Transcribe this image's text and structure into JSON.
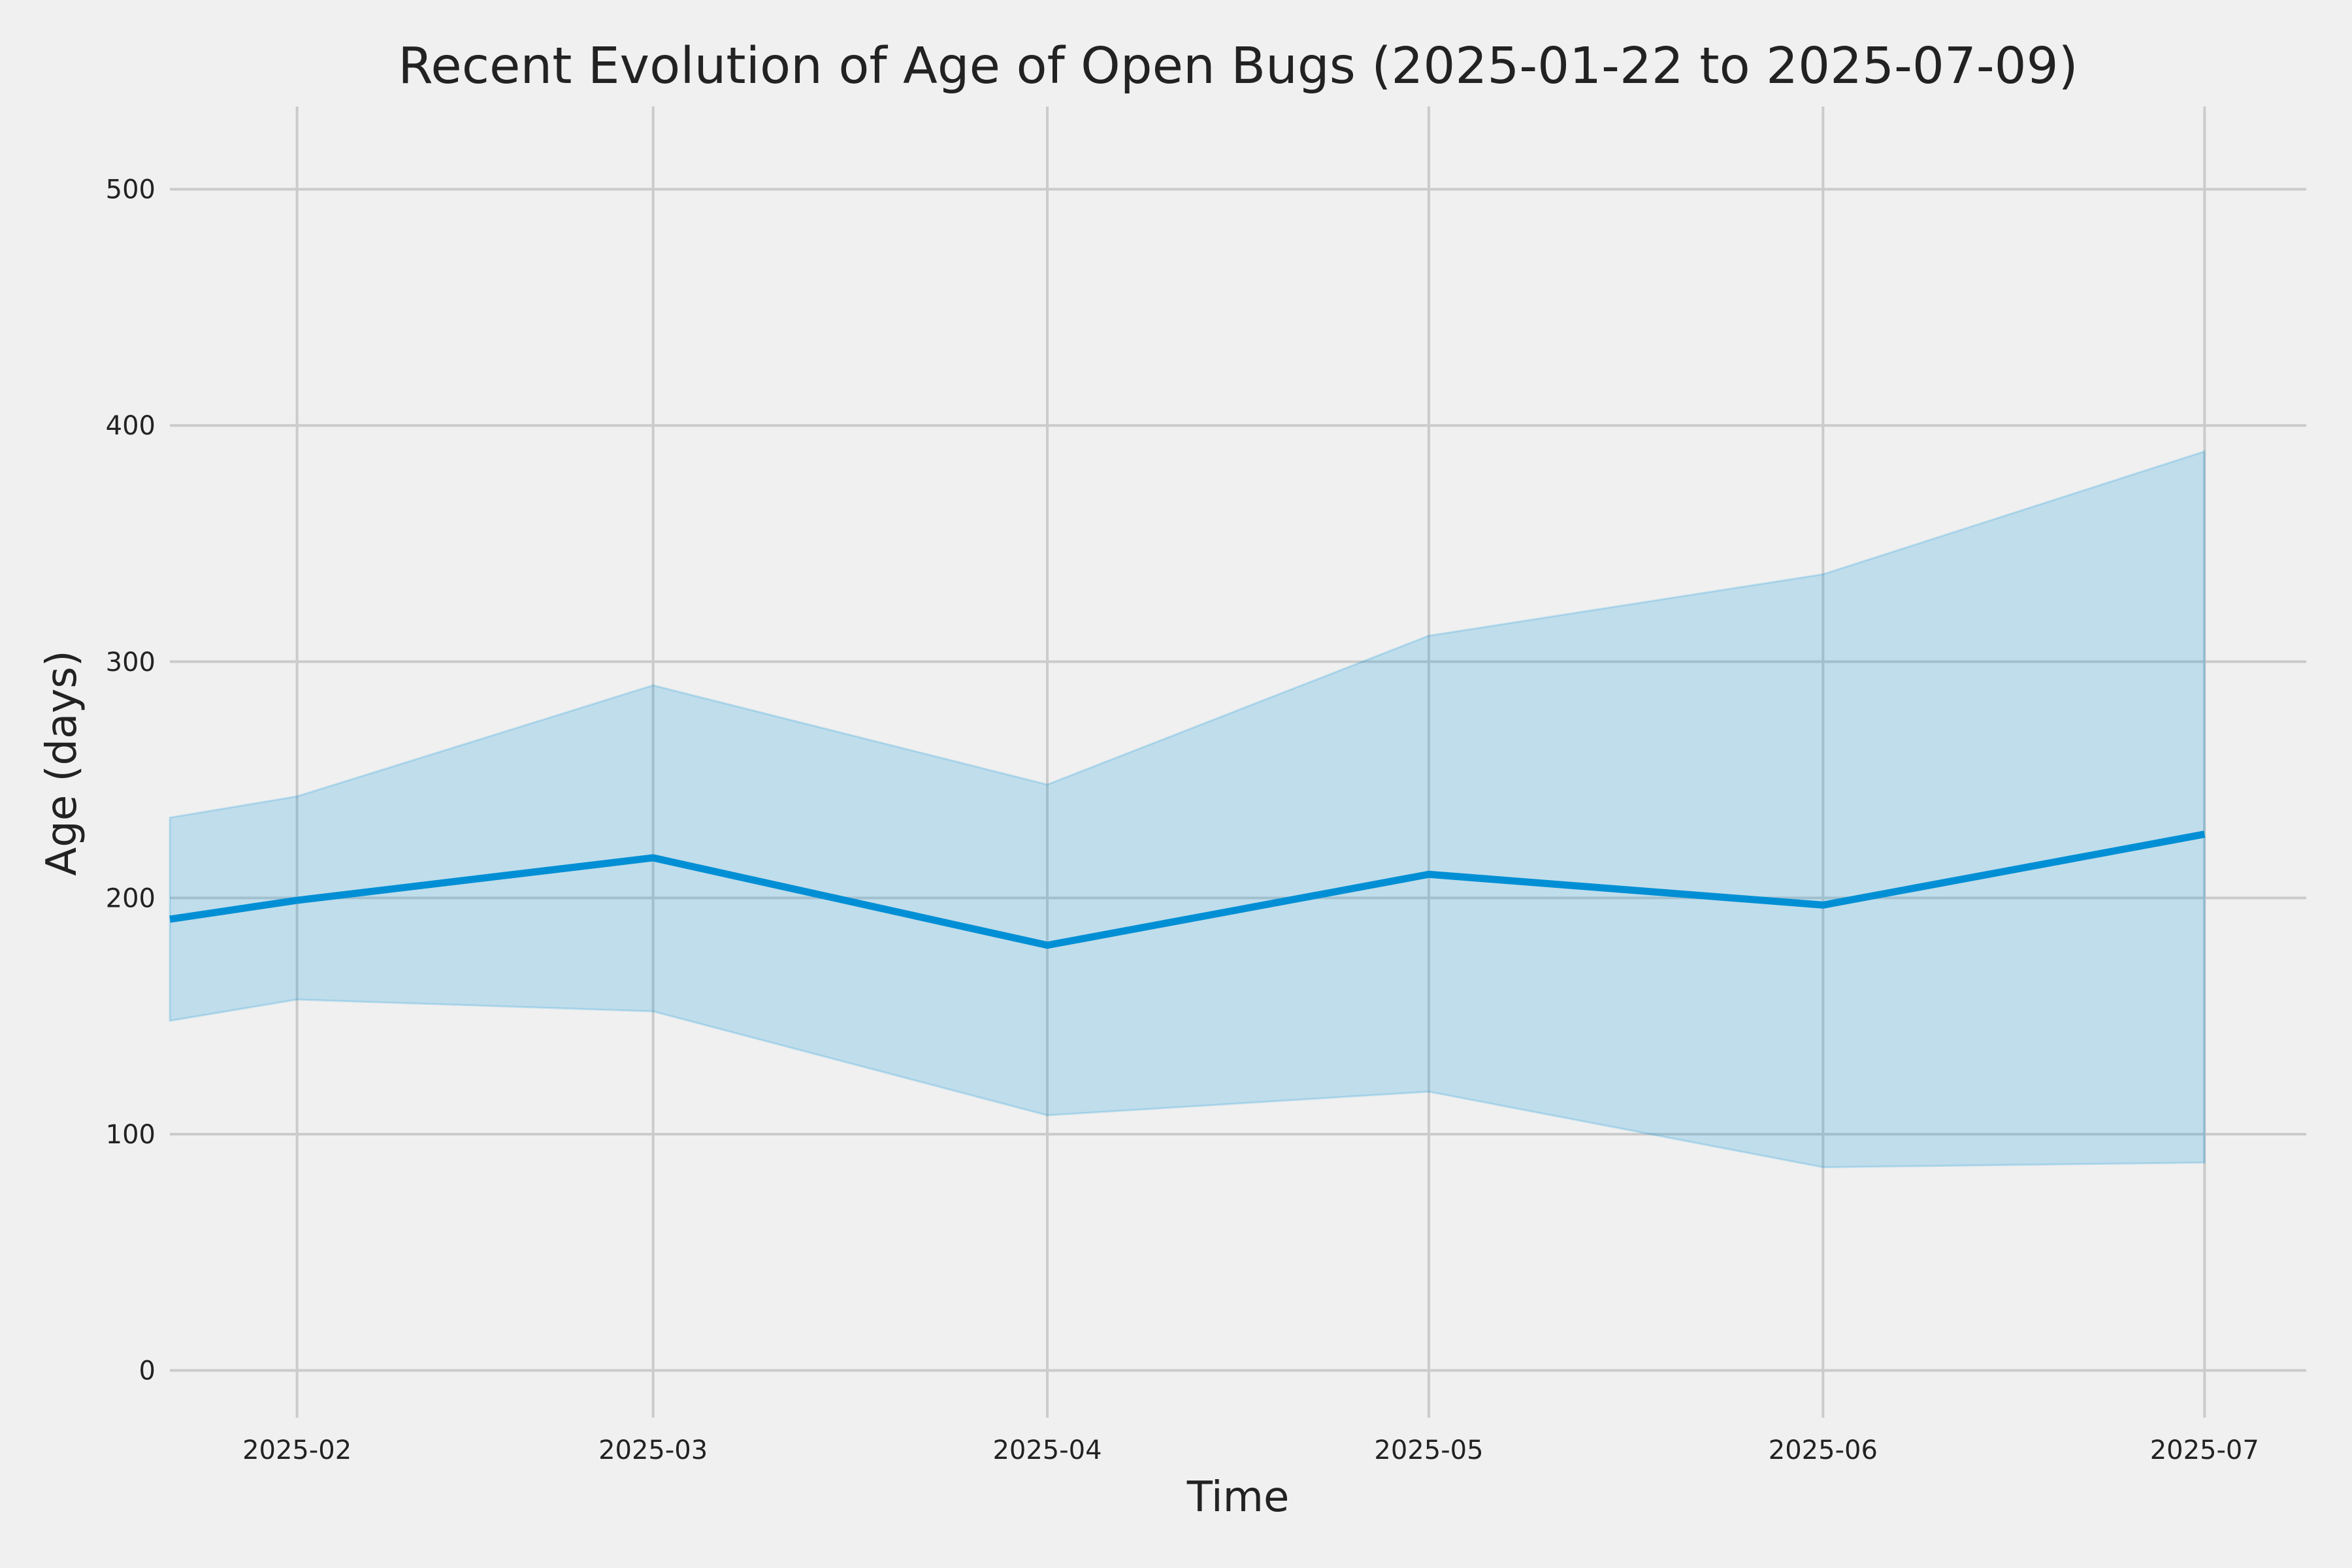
{
  "chart_data": {
    "type": "line",
    "title": "Recent Evolution of Age of Open Bugs (2025-01-22 to 2025-07-09)",
    "xlabel": "Time",
    "ylabel": "Age (days)",
    "xlim": [
      "2025-01-22",
      "2025-07-09"
    ],
    "ylim": [
      -20,
      535
    ],
    "grid": true,
    "x_ticks": [
      "2025-02-01",
      "2025-03-01",
      "2025-04-01",
      "2025-05-01",
      "2025-06-01",
      "2025-07-01"
    ],
    "x_tick_labels": [
      "2025-02",
      "2025-03",
      "2025-04",
      "2025-05",
      "2025-06",
      "2025-07"
    ],
    "y_ticks": [
      0,
      100,
      200,
      300,
      400,
      500
    ],
    "y_tick_labels": [
      "0",
      "100",
      "200",
      "300",
      "400",
      "500"
    ],
    "x": [
      "2025-01-22",
      "2025-02-01",
      "2025-03-01",
      "2025-04-01",
      "2025-05-01",
      "2025-06-01",
      "2025-07-01"
    ],
    "series": [
      {
        "values": [
          191,
          199,
          217,
          180,
          210,
          197,
          227
        ],
        "color": "#008fd5"
      }
    ],
    "band": {
      "lower": [
        148,
        157,
        152,
        108,
        118,
        86,
        88
      ],
      "upper": [
        234,
        243,
        290,
        248,
        311,
        337,
        389
      ],
      "color": "#008fd5",
      "opacity": 0.2
    }
  }
}
